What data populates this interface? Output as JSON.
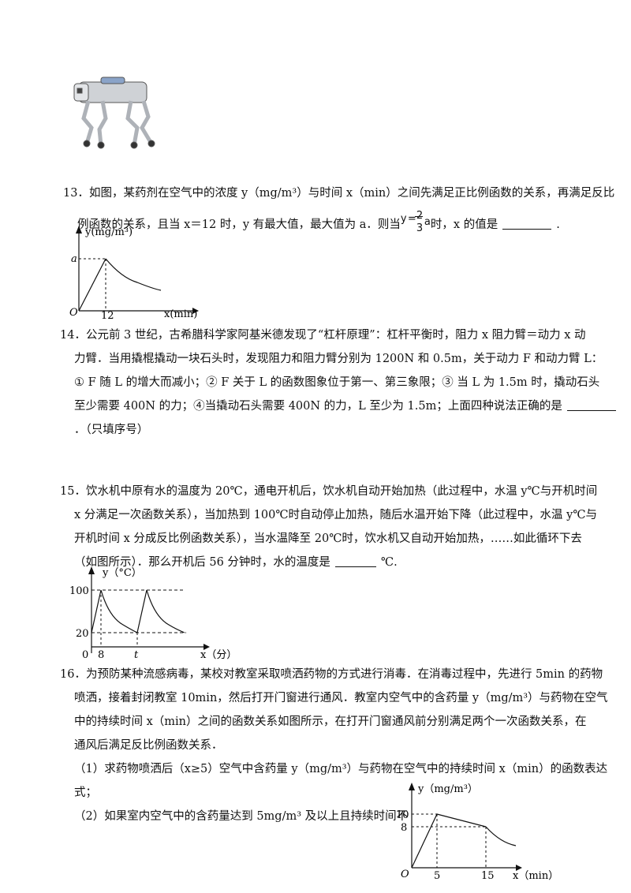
{
  "q13": {
    "number": "13．",
    "line1": "如图，某药剂在空气中的浓度 y（mg/m³）与时间 x（min）之间先满足正比例函数的关系，再满足反比",
    "line2a": "例函数的关系，且当 x＝12 时，y 有最大值，最大值为 a．则当",
    "frac_y": "y",
    "frac_eq": "=",
    "frac_num": "2",
    "frac_den": "3",
    "frac_a": "a",
    "line2b": "时，x 的值是",
    "line2c": ".",
    "graph": {
      "ylabel": "y(mg/m³)",
      "xlabel": "x(min)",
      "a_label": "a",
      "origin": "O",
      "x12": "12"
    }
  },
  "q14": {
    "number": "14．",
    "line1": "公元前 3 世纪，古希腊科学家阿基米德发现了“杠杆原理”：杠杆平衡时，阻力 x 阻力臂＝动力 x 动",
    "line2": "力臂．当用撬棍撬动一块石头时，发现阻力和阻力臂分别为 1200N 和 0.5m，关于动力 F 和动力臂 L：",
    "line3": "① F 随 L 的增大而减小；② F 关于 L 的函数图象位于第一、第三象限；③ 当 L 为 1.5m 时，撬动石头",
    "line4": "至少需要 400N 的力；④当撬动石头需要 400N 的力，L 至少为 1.5m；上面四种说法正确的是",
    "line5": "．（只填序号）"
  },
  "q15": {
    "number": "15．",
    "line1": "饮水机中原有水的温度为 20℃，通电开机后，饮水机自动开始加热（此过程中，水温 y℃与开机时间",
    "line2": "x 分满足一次函数关系），当加热到 100℃时自动停止加热，随后水温开始下降（此过程中，水温 y℃与",
    "line3": "开机时间 x 分成反比例函数关系），当水温降至 20℃时，饮水机又自动开始加热，……如此循环下去",
    "line4a": "（如图所示）．那么开机后 56 分钟时，水的温度是",
    "line4b": "℃.",
    "graph": {
      "ylabel": "y（°C）",
      "xlabel": "x（分）",
      "y100": "100",
      "y20": "20",
      "origin": "0",
      "x8": "8",
      "xt": "t"
    }
  },
  "q16": {
    "number": "16．",
    "line1": "为预防某种流感病毒，某校对教室采取喷洒药物的方式进行消毒．在消毒过程中，先进行 5min 的药物",
    "line2": "喷洒，接着封闭教室 10min，然后打开门窗进行通风．教室内空气中的含药量 y（mg/m³）与药物在空气",
    "line3": "中的持续时间 x（min）之间的函数关系如图所示，在打开门窗通风前分别满足两个一次函数关系，在",
    "line4": "通风后满足反比例函数关系．",
    "sub1a": "（1）求药物喷洒后（x≥5）空气中含药量 y（mg/m³）与药物在空气中的持续时间 x（min）的函数表达",
    "sub1b": "式；",
    "sub2": "（2）如果室内空气中的含药量达到 5mg/m³ 及以上且持续时间不",
    "graph": {
      "ylabel": "y（mg/m³）",
      "xlabel": "x（min）",
      "y10": "10",
      "y8": "8",
      "origin": "O",
      "x5": "5",
      "x15": "15"
    }
  }
}
